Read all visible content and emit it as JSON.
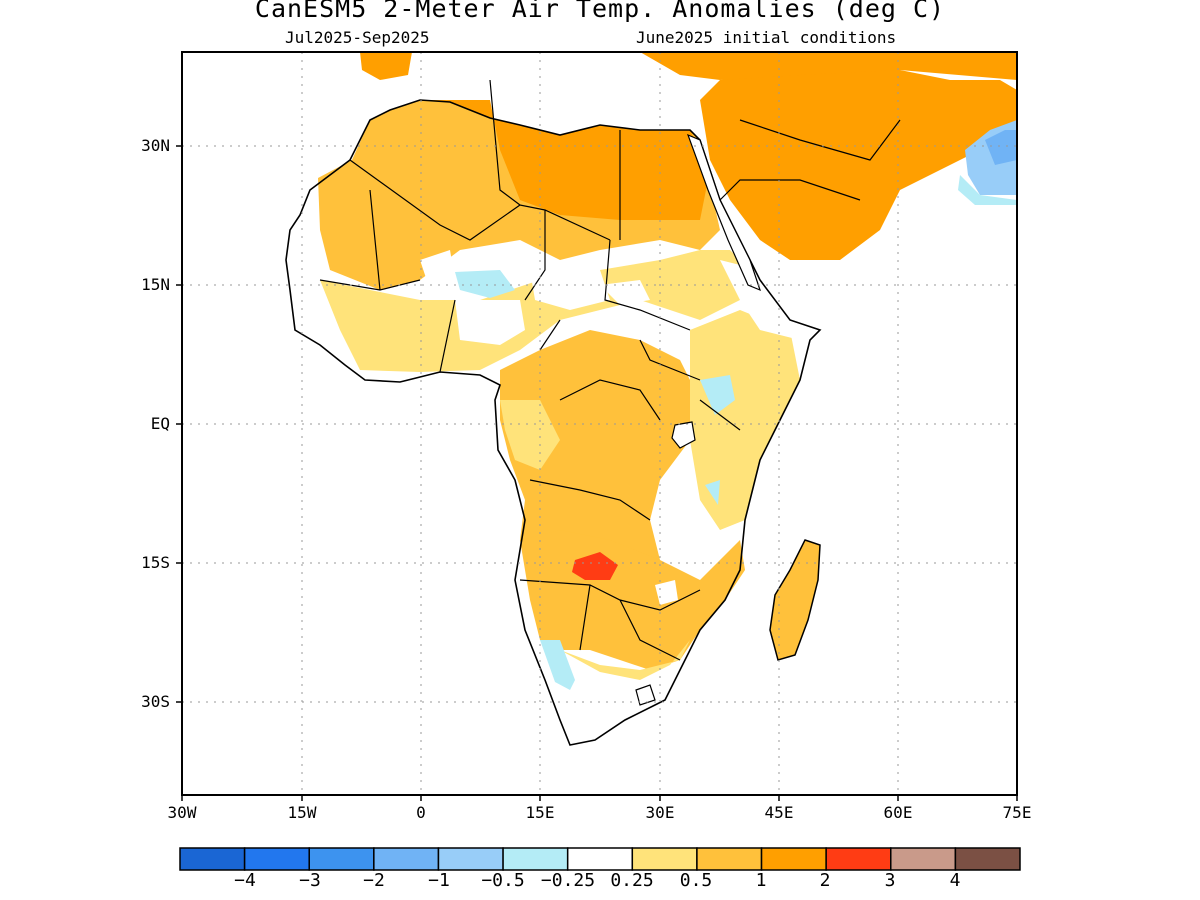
{
  "header": {
    "title": "CanESM5 2-Meter Air Temp. Anomalies (deg C)",
    "period": "Jul2025-Sep2025",
    "init": "June2025 initial conditions"
  },
  "axes": {
    "lat_labels": [
      "30N",
      "15N",
      "EQ",
      "15S",
      "30S"
    ],
    "lon_labels": [
      "30W",
      "15W",
      "0",
      "15E",
      "30E",
      "45E",
      "60E",
      "75E"
    ],
    "lon_range": [
      -30,
      75
    ],
    "lat_range": [
      -40,
      40
    ]
  },
  "colorbar": {
    "labels": [
      "-4",
      "-3",
      "-2",
      "-1",
      "-0.5",
      "-0.25",
      "0.25",
      "0.5",
      "1",
      "2",
      "3",
      "4"
    ],
    "colors": [
      "#1a66d4",
      "#2277ee",
      "#3d93ef",
      "#70b3f5",
      "#98cdf8",
      "#b4ecf6",
      "#ffffff",
      "#ffe37a",
      "#ffc13b",
      "#ff9f00",
      "#ff3c14",
      "#c99a8a",
      "#7b5044"
    ]
  },
  "map_colors": {
    "light_orange": "#ffe37a",
    "orange": "#ffc13b",
    "dark_orange": "#ff9f00",
    "red": "#ff3c14",
    "light_blue": "#b4ecf6",
    "blue": "#98cdf8",
    "mid_blue": "#70b3f5",
    "deep_blue": "#3d93ef"
  }
}
